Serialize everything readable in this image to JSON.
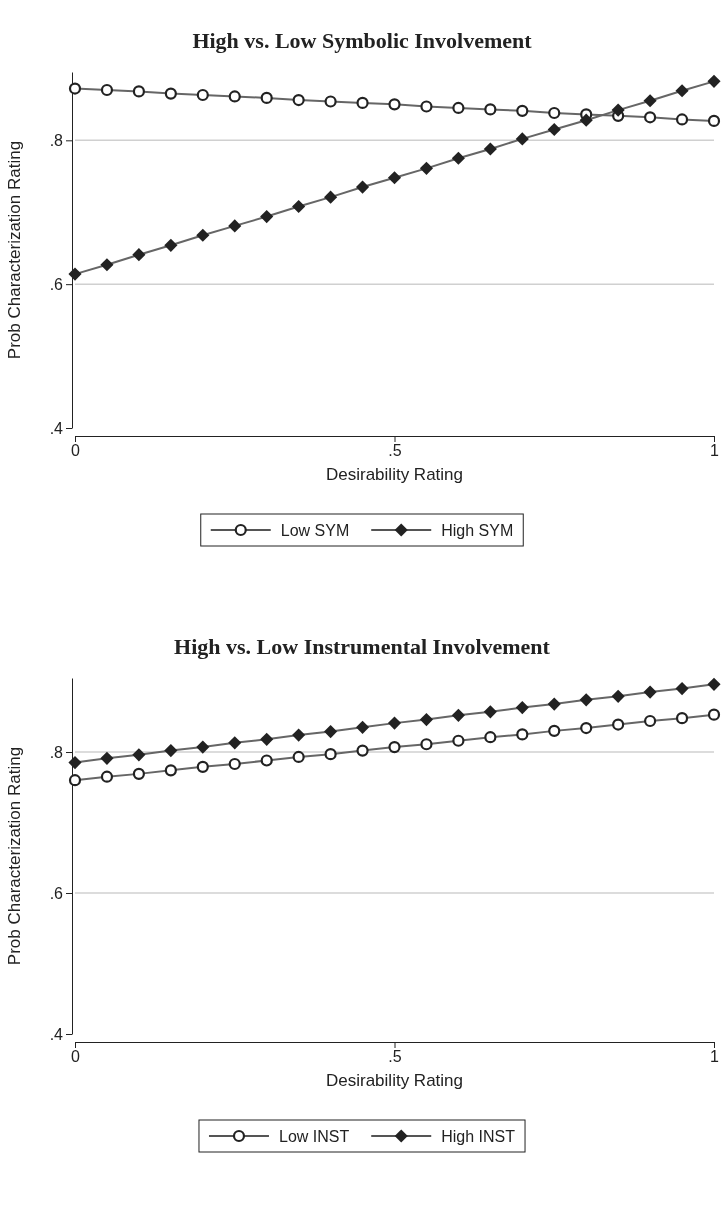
{
  "chart_data": [
    {
      "type": "line",
      "title": "High vs. Low Symbolic Involvement",
      "xlabel": "Desirability Rating",
      "ylabel": "Prob Characterization Rating",
      "x": [
        0,
        0.05,
        0.1,
        0.15,
        0.2,
        0.25,
        0.3,
        0.35,
        0.4,
        0.45,
        0.5,
        0.55,
        0.6,
        0.65,
        0.7,
        0.75,
        0.8,
        0.85,
        0.9,
        0.95,
        1
      ],
      "series": [
        {
          "name": "Low SYM",
          "color": "#222222",
          "marker": "circle",
          "values": [
            0.872,
            0.87,
            0.868,
            0.865,
            0.863,
            0.861,
            0.859,
            0.856,
            0.854,
            0.852,
            0.85,
            0.847,
            0.845,
            0.843,
            0.841,
            0.838,
            0.836,
            0.834,
            0.832,
            0.829,
            0.827
          ]
        },
        {
          "name": "High SYM",
          "color": "#222222",
          "marker": "diamond",
          "values": [
            0.614,
            0.627,
            0.641,
            0.654,
            0.668,
            0.681,
            0.694,
            0.708,
            0.721,
            0.735,
            0.748,
            0.761,
            0.775,
            0.788,
            0.802,
            0.815,
            0.828,
            0.842,
            0.855,
            0.869,
            0.882
          ]
        }
      ],
      "xlim": [
        0,
        1
      ],
      "xticks": [
        {
          "value": 0,
          "label": "0"
        },
        {
          "value": 0.5,
          "label": ".5"
        },
        {
          "value": 1,
          "label": "1"
        }
      ],
      "ylim": [
        0.4,
        0.895
      ],
      "yticks": [
        {
          "value": 0.4,
          "label": ".4"
        },
        {
          "value": 0.6,
          "label": ".6"
        },
        {
          "value": 0.8,
          "label": ".8"
        }
      ],
      "grid": "y",
      "legend": "bottom",
      "line_style": "solid"
    },
    {
      "type": "line",
      "title": "High vs. Low Instrumental Involvement",
      "xlabel": "Desirability Rating",
      "ylabel": "Prob Characterization Rating",
      "x": [
        0,
        0.05,
        0.1,
        0.15,
        0.2,
        0.25,
        0.3,
        0.35,
        0.4,
        0.45,
        0.5,
        0.55,
        0.6,
        0.65,
        0.7,
        0.75,
        0.8,
        0.85,
        0.9,
        0.95,
        1
      ],
      "series": [
        {
          "name": "Low INST",
          "color": "#222222",
          "marker": "circle",
          "values": [
            0.76,
            0.765,
            0.769,
            0.774,
            0.779,
            0.783,
            0.788,
            0.793,
            0.797,
            0.802,
            0.807,
            0.811,
            0.816,
            0.821,
            0.825,
            0.83,
            0.834,
            0.839,
            0.844,
            0.848,
            0.853
          ]
        },
        {
          "name": "High INST",
          "color": "#222222",
          "marker": "diamond",
          "values": [
            0.785,
            0.791,
            0.796,
            0.802,
            0.807,
            0.813,
            0.818,
            0.824,
            0.829,
            0.835,
            0.841,
            0.846,
            0.852,
            0.857,
            0.863,
            0.868,
            0.874,
            0.879,
            0.885,
            0.89,
            0.896
          ]
        }
      ],
      "xlim": [
        0,
        1
      ],
      "xticks": [
        {
          "value": 0,
          "label": "0"
        },
        {
          "value": 0.5,
          "label": ".5"
        },
        {
          "value": 1,
          "label": "1"
        }
      ],
      "ylim": [
        0.4,
        0.905
      ],
      "yticks": [
        {
          "value": 0.4,
          "label": ".4"
        },
        {
          "value": 0.6,
          "label": ".6"
        },
        {
          "value": 0.8,
          "label": ".8"
        }
      ],
      "grid": "y",
      "legend": "bottom",
      "line_style": "solid"
    }
  ]
}
